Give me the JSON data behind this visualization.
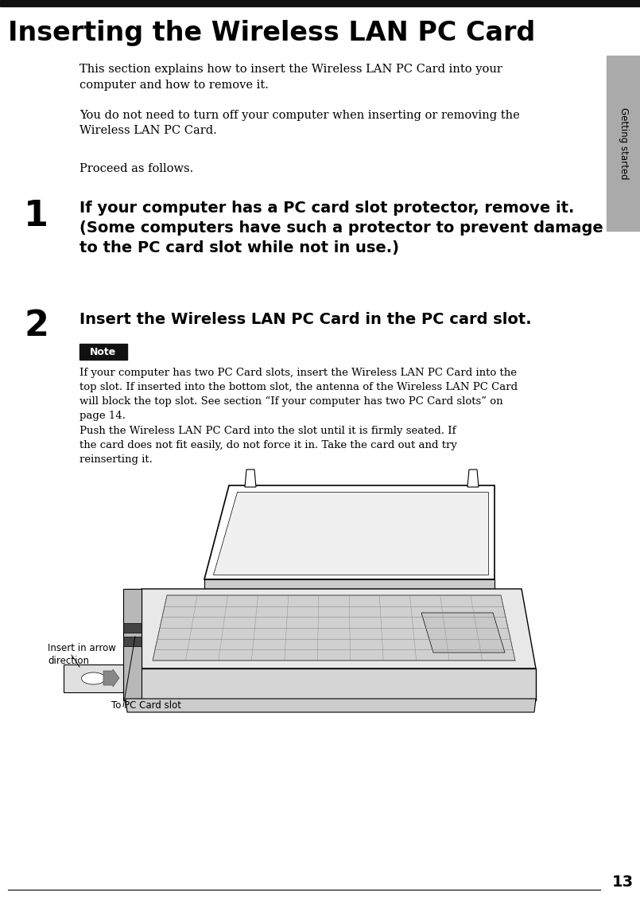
{
  "title": "Inserting the Wireless LAN PC Card",
  "title_bar_color": "#111111",
  "title_color": "#000000",
  "title_fontsize": 24,
  "sidebar_label": "Getting started",
  "sidebar_color": "#aaaaaa",
  "body_text_fontsize": 10.5,
  "step_num_fontsize": 32,
  "step_text_fontsize": 14,
  "note_box_color": "#111111",
  "note_text_color": "#ffffff",
  "note_fontsize": 9,
  "note_body_fontsize": 9.5,
  "page_number": "13",
  "page_num_fontsize": 14,
  "bg_color": "#ffffff",
  "text_color": "#000000",
  "para1": "This section explains how to insert the Wireless LAN PC Card into your\ncomputer and how to remove it.",
  "para2": "You do not need to turn off your computer when inserting or removing the\nWireless LAN PC Card.",
  "para3": "Proceed as follows.",
  "step1_num": "1",
  "step1_text": "If your computer has a PC card slot protector, remove it.\n(Some computers have such a protector to prevent damage\nto the PC card slot while not in use.)",
  "step2_num": "2",
  "step2_text": "Insert the Wireless LAN PC Card in the PC card slot.",
  "note_label": "Note",
  "note_body1": "If your computer has two PC Card slots, insert the Wireless LAN PC Card into the\ntop slot. If inserted into the bottom slot, the antenna of the Wireless LAN PC Card\nwill block the top slot. See section “If your computer has two PC Card slots” on\npage 14.",
  "note_body2": "Push the Wireless LAN PC Card into the slot until it is firmly seated. If\nthe card does not fit easily, do not force it in. Take the card out and try\nreinserting it.",
  "caption1": "Insert in arrow\ndirection",
  "caption2": "To PC Card slot"
}
